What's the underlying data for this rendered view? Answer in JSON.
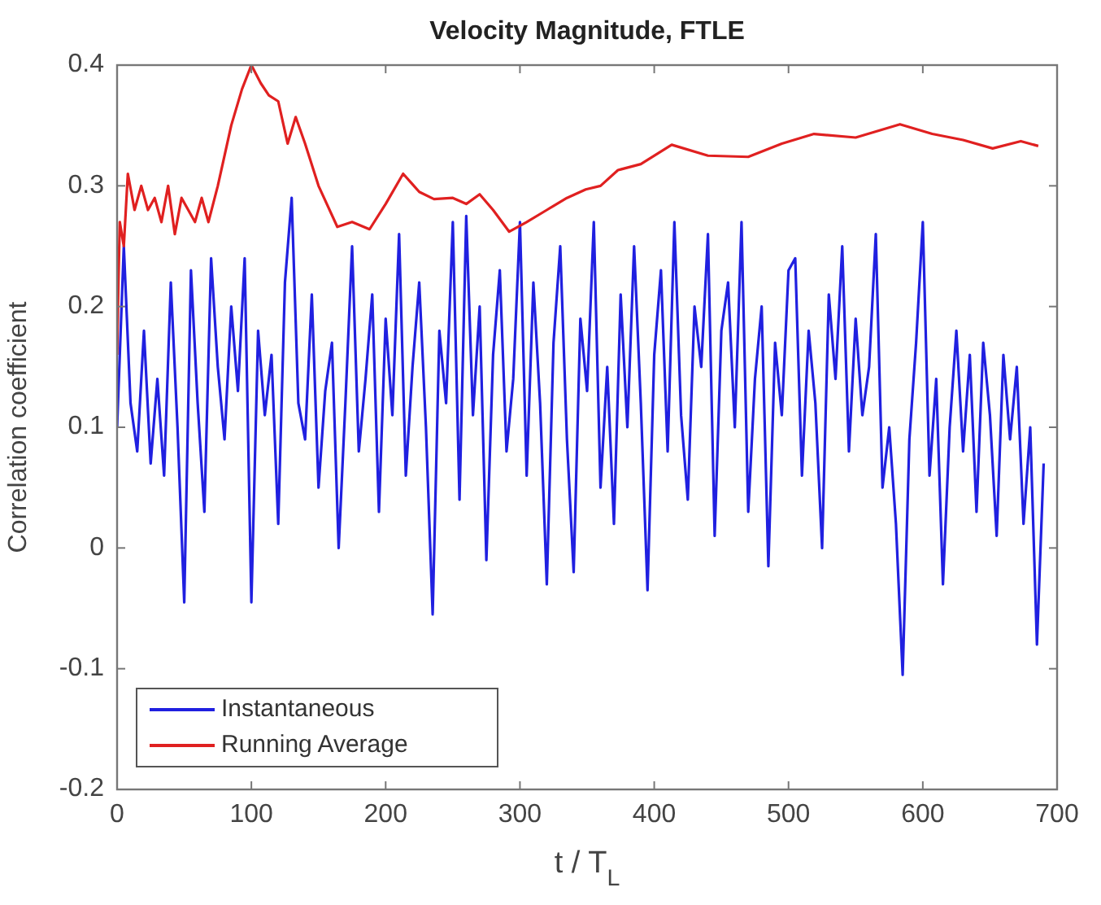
{
  "chart_data": {
    "type": "line",
    "title": "Velocity Magnitude, FTLE",
    "xlabel": "t / T$_{L}$",
    "ylabel": "Correlation coefficient",
    "xlim": [
      0,
      700
    ],
    "ylim": [
      -0.2,
      0.4
    ],
    "xticks": [
      0,
      100,
      200,
      300,
      400,
      500,
      600,
      700
    ],
    "yticks": [
      -0.2,
      -0.1,
      0,
      0.1,
      0.2,
      0.3,
      0.4
    ],
    "legend": "bottom left",
    "series": [
      {
        "name": "Instantaneous",
        "color": "#2020e0",
        "x": [
          0,
          5,
          10,
          15,
          20,
          25,
          30,
          35,
          40,
          45,
          50,
          55,
          60,
          65,
          70,
          75,
          80,
          85,
          90,
          95,
          100,
          105,
          110,
          115,
          120,
          125,
          130,
          135,
          140,
          145,
          150,
          155,
          160,
          165,
          170,
          175,
          180,
          185,
          190,
          195,
          200,
          205,
          210,
          215,
          220,
          225,
          230,
          235,
          240,
          245,
          250,
          255,
          260,
          265,
          270,
          275,
          280,
          285,
          290,
          295,
          300,
          305,
          310,
          315,
          320,
          325,
          330,
          335,
          340,
          345,
          350,
          355,
          360,
          365,
          370,
          375,
          380,
          385,
          390,
          395,
          400,
          405,
          410,
          415,
          420,
          425,
          430,
          435,
          440,
          445,
          450,
          455,
          460,
          465,
          470,
          475,
          480,
          485,
          490,
          495,
          500,
          505,
          510,
          515,
          520,
          525,
          530,
          535,
          540,
          545,
          550,
          555,
          560,
          565,
          570,
          575,
          580,
          585,
          590,
          595,
          600,
          605,
          610,
          615,
          620,
          625,
          630,
          635,
          640,
          645,
          650,
          655,
          660,
          665,
          670,
          675,
          680,
          685,
          690
        ],
        "values": [
          0.1,
          0.25,
          0.12,
          0.08,
          0.18,
          0.07,
          0.14,
          0.06,
          0.22,
          0.1,
          -0.045,
          0.23,
          0.12,
          0.03,
          0.24,
          0.15,
          0.09,
          0.2,
          0.13,
          0.24,
          -0.045,
          0.18,
          0.11,
          0.16,
          0.02,
          0.22,
          0.29,
          0.12,
          0.09,
          0.21,
          0.05,
          0.13,
          0.17,
          0.0,
          0.12,
          0.25,
          0.08,
          0.14,
          0.21,
          0.03,
          0.19,
          0.11,
          0.26,
          0.06,
          0.15,
          0.22,
          0.1,
          -0.055,
          0.18,
          0.12,
          0.27,
          0.04,
          0.275,
          0.11,
          0.2,
          -0.01,
          0.16,
          0.23,
          0.08,
          0.14,
          0.27,
          0.06,
          0.22,
          0.12,
          -0.03,
          0.17,
          0.25,
          0.09,
          -0.02,
          0.19,
          0.13,
          0.27,
          0.05,
          0.15,
          0.02,
          0.21,
          0.1,
          0.25,
          0.12,
          -0.035,
          0.16,
          0.23,
          0.08,
          0.27,
          0.11,
          0.04,
          0.2,
          0.15,
          0.26,
          0.01,
          0.18,
          0.22,
          0.1,
          0.27,
          0.03,
          0.14,
          0.2,
          -0.015,
          0.17,
          0.11,
          0.23,
          0.24,
          0.06,
          0.18,
          0.12,
          0.0,
          0.21,
          0.14,
          0.25,
          0.08,
          0.19,
          0.11,
          0.15,
          0.26,
          0.05,
          0.1,
          0.02,
          -0.105,
          0.09,
          0.17,
          0.27,
          0.06,
          0.14,
          -0.03,
          0.1,
          0.18,
          0.08,
          0.16,
          0.03,
          0.17,
          0.11,
          0.01,
          0.16,
          0.09,
          0.15,
          0.02,
          0.1,
          -0.08,
          0.07
        ]
      },
      {
        "name": "Running Average",
        "color": "#e02020",
        "x": [
          0,
          1,
          2,
          5,
          8,
          13,
          18,
          23,
          28,
          33,
          38,
          43,
          48,
          53,
          58,
          63,
          68,
          75,
          85,
          93,
          100,
          107,
          113,
          120,
          127,
          133,
          140,
          150,
          164,
          175,
          188,
          200,
          213,
          225,
          236,
          250,
          260,
          270,
          280,
          292,
          305,
          320,
          335,
          349,
          360,
          373,
          390,
          413,
          440,
          470,
          495,
          519,
          550,
          583,
          607,
          630,
          652,
          673,
          686
        ],
        "values": [
          0.16,
          0.22,
          0.27,
          0.25,
          0.31,
          0.28,
          0.3,
          0.28,
          0.29,
          0.27,
          0.3,
          0.26,
          0.29,
          0.28,
          0.27,
          0.29,
          0.27,
          0.3,
          0.35,
          0.38,
          0.4,
          0.385,
          0.375,
          0.37,
          0.335,
          0.357,
          0.335,
          0.3,
          0.266,
          0.27,
          0.264,
          0.285,
          0.31,
          0.295,
          0.289,
          0.29,
          0.285,
          0.293,
          0.28,
          0.262,
          0.27,
          0.28,
          0.29,
          0.297,
          0.3,
          0.313,
          0.318,
          0.334,
          0.325,
          0.324,
          0.335,
          0.343,
          0.34,
          0.351,
          0.343,
          0.338,
          0.331,
          0.337,
          0.333
        ]
      }
    ]
  }
}
